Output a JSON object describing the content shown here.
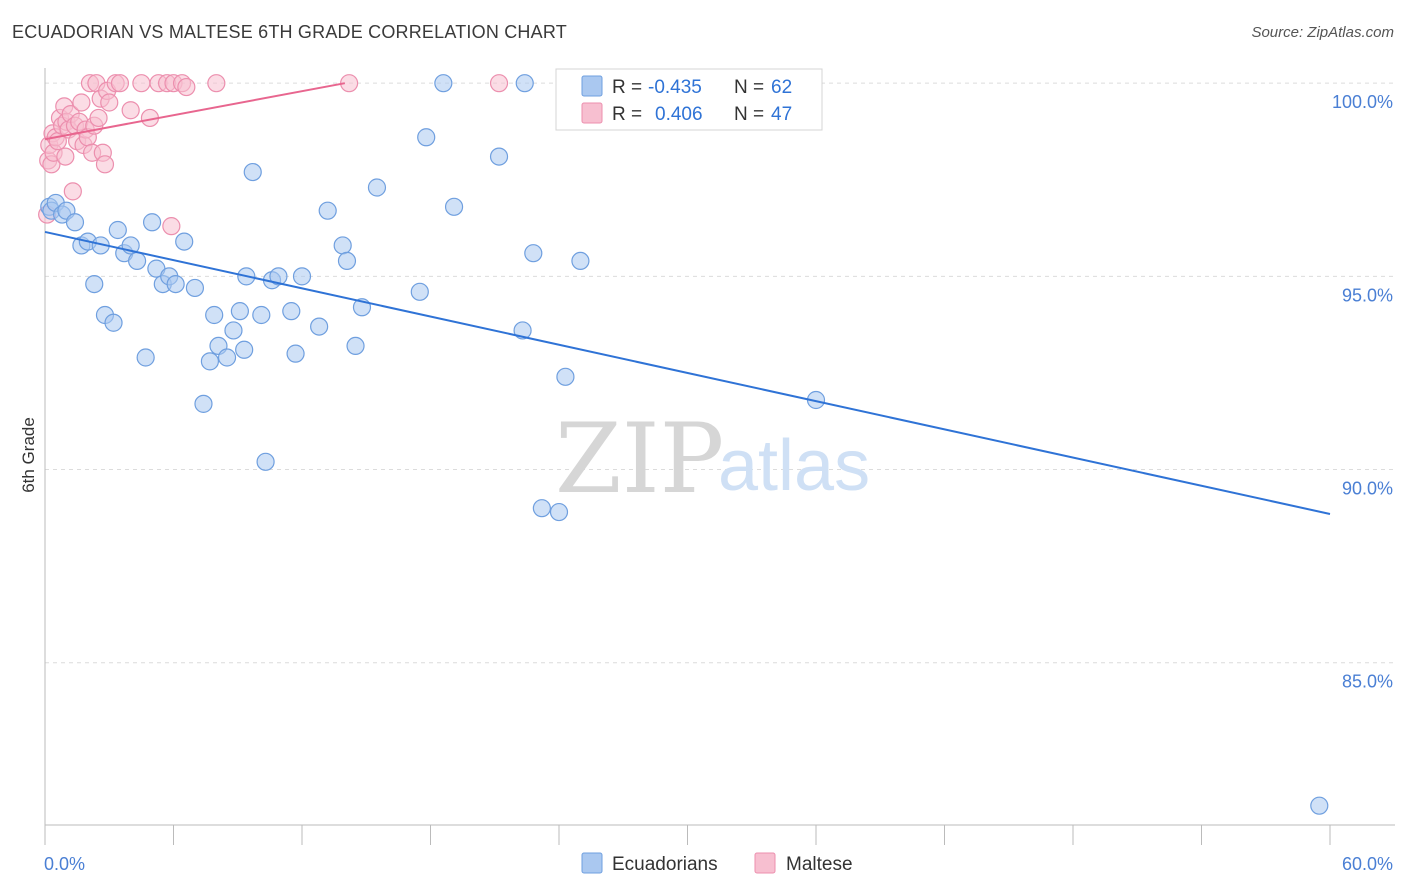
{
  "title": "ECUADORIAN VS MALTESE 6TH GRADE CORRELATION CHART",
  "source": "Source: ZipAtlas.com",
  "colors": {
    "ecuadorians_fill": "#aac8f0",
    "ecuadorians_stroke": "#6f9fdf",
    "ecuadorians_line": "#2f73d6",
    "maltese_fill": "#f7bfd0",
    "maltese_stroke": "#ec8fae",
    "maltese_line": "#e8668f",
    "tick_text": "#4a7fd4",
    "grid": "#dcdcdc"
  },
  "watermark": {
    "zip": "ZIP",
    "atlas": "atlas"
  },
  "legend_top": {
    "rows": [
      {
        "r_label": "R =",
        "r_value": "-0.435",
        "n_label": "N =",
        "n_value": "62"
      },
      {
        "r_label": "R =",
        "r_value": "0.406",
        "n_label": "N =",
        "n_value": "47"
      }
    ]
  },
  "legend_bottom": {
    "items": [
      "Ecuadorians",
      "Maltese"
    ]
  },
  "chart_data": {
    "type": "scatter",
    "title": "ECUADORIAN VS MALTESE 6TH GRADE CORRELATION CHART",
    "xlabel": "",
    "ylabel": "6th Grade",
    "xlim": [
      0,
      60
    ],
    "ylim": [
      80.8,
      100.6
    ],
    "x_tick_labels": [
      "0.0%",
      "60.0%"
    ],
    "y_ticks": [
      85,
      90,
      95,
      100
    ],
    "y_tick_labels": [
      "85.0%",
      "90.0%",
      "95.0%",
      "100.0%"
    ],
    "grid": true,
    "legend_position": "top-center",
    "series": [
      {
        "name": "Ecuadorians",
        "r": -0.435,
        "n": 62,
        "trend": {
          "x0": 0,
          "y0": 96.15,
          "x1": 60,
          "y1": 88.85
        },
        "points": [
          [
            0.2,
            96.8
          ],
          [
            0.3,
            96.7
          ],
          [
            0.5,
            96.9
          ],
          [
            0.8,
            96.6
          ],
          [
            1.0,
            96.7
          ],
          [
            1.4,
            96.4
          ],
          [
            1.7,
            95.8
          ],
          [
            2.0,
            95.9
          ],
          [
            2.3,
            94.8
          ],
          [
            2.6,
            95.8
          ],
          [
            2.8,
            94.0
          ],
          [
            3.2,
            93.8
          ],
          [
            3.4,
            96.2
          ],
          [
            3.7,
            95.6
          ],
          [
            4.0,
            95.8
          ],
          [
            4.3,
            95.4
          ],
          [
            4.7,
            92.9
          ],
          [
            5.0,
            96.4
          ],
          [
            5.2,
            95.2
          ],
          [
            5.5,
            94.8
          ],
          [
            5.8,
            95.0
          ],
          [
            6.1,
            94.8
          ],
          [
            6.5,
            95.9
          ],
          [
            7.0,
            94.7
          ],
          [
            7.4,
            91.7
          ],
          [
            7.7,
            92.8
          ],
          [
            7.9,
            94.0
          ],
          [
            8.1,
            93.2
          ],
          [
            8.5,
            92.9
          ],
          [
            8.8,
            93.6
          ],
          [
            9.1,
            94.1
          ],
          [
            9.3,
            93.1
          ],
          [
            9.4,
            95.0
          ],
          [
            9.7,
            97.7
          ],
          [
            10.1,
            94.0
          ],
          [
            10.3,
            90.2
          ],
          [
            10.6,
            94.9
          ],
          [
            10.9,
            95.0
          ],
          [
            11.5,
            94.1
          ],
          [
            11.7,
            93.0
          ],
          [
            12.0,
            95.0
          ],
          [
            12.8,
            93.7
          ],
          [
            13.2,
            96.7
          ],
          [
            13.9,
            95.8
          ],
          [
            14.1,
            95.4
          ],
          [
            14.5,
            93.2
          ],
          [
            14.8,
            94.2
          ],
          [
            15.5,
            97.3
          ],
          [
            17.5,
            94.6
          ],
          [
            17.8,
            98.6
          ],
          [
            18.6,
            100.0
          ],
          [
            19.1,
            96.8
          ],
          [
            21.2,
            98.1
          ],
          [
            22.3,
            93.6
          ],
          [
            22.4,
            100.0
          ],
          [
            22.8,
            95.6
          ],
          [
            23.2,
            89.0
          ],
          [
            24.0,
            88.9
          ],
          [
            24.3,
            92.4
          ],
          [
            25.0,
            95.4
          ],
          [
            36.0,
            91.8
          ],
          [
            59.5,
            81.3
          ]
        ]
      },
      {
        "name": "Maltese",
        "r": 0.406,
        "n": 47,
        "trend": {
          "x0": 0,
          "y0": 98.55,
          "x1": 14.0,
          "y1": 100.0
        },
        "points": [
          [
            0.1,
            96.6
          ],
          [
            0.15,
            98.0
          ],
          [
            0.2,
            98.4
          ],
          [
            0.3,
            97.9
          ],
          [
            0.35,
            98.7
          ],
          [
            0.4,
            98.2
          ],
          [
            0.5,
            98.6
          ],
          [
            0.6,
            98.5
          ],
          [
            0.7,
            99.1
          ],
          [
            0.8,
            98.9
          ],
          [
            0.9,
            99.4
          ],
          [
            0.95,
            98.1
          ],
          [
            1.0,
            99.0
          ],
          [
            1.1,
            98.8
          ],
          [
            1.2,
            99.2
          ],
          [
            1.3,
            97.2
          ],
          [
            1.4,
            98.9
          ],
          [
            1.5,
            98.5
          ],
          [
            1.6,
            99.0
          ],
          [
            1.7,
            99.5
          ],
          [
            1.8,
            98.4
          ],
          [
            1.9,
            98.8
          ],
          [
            2.0,
            98.6
          ],
          [
            2.1,
            100.0
          ],
          [
            2.2,
            98.2
          ],
          [
            2.3,
            98.9
          ],
          [
            2.4,
            100.0
          ],
          [
            2.5,
            99.1
          ],
          [
            2.6,
            99.6
          ],
          [
            2.7,
            98.2
          ],
          [
            2.8,
            97.9
          ],
          [
            2.9,
            99.8
          ],
          [
            3.0,
            99.5
          ],
          [
            3.3,
            100.0
          ],
          [
            3.5,
            100.0
          ],
          [
            4.0,
            99.3
          ],
          [
            4.5,
            100.0
          ],
          [
            4.9,
            99.1
          ],
          [
            5.3,
            100.0
          ],
          [
            5.7,
            100.0
          ],
          [
            5.9,
            96.3
          ],
          [
            6.0,
            100.0
          ],
          [
            6.4,
            100.0
          ],
          [
            6.6,
            99.9
          ],
          [
            8.0,
            100.0
          ],
          [
            14.2,
            100.0
          ],
          [
            21.2,
            100.0
          ]
        ]
      }
    ]
  }
}
